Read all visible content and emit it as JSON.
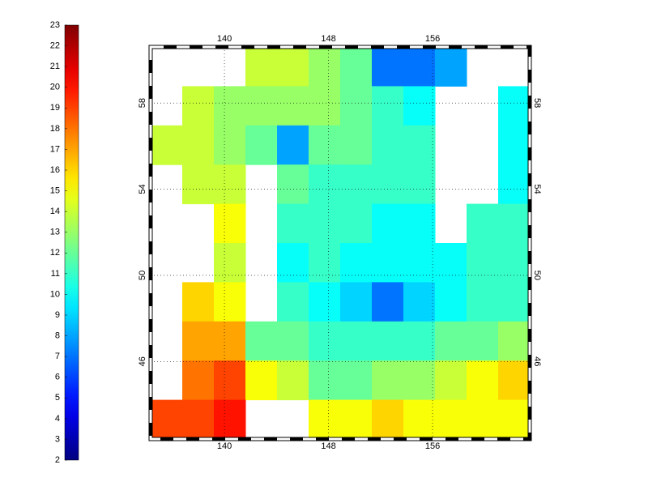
{
  "colorbar": {
    "clim": [
      2,
      23
    ],
    "ticks": [
      2,
      3,
      4,
      5,
      6,
      7,
      8,
      9,
      10,
      11,
      12,
      13,
      14,
      15,
      16,
      17,
      18,
      19,
      20,
      21,
      22,
      23
    ]
  },
  "map": {
    "lonlim": [
      134.33,
      163.47
    ],
    "latlim": [
      42.4,
      60.6
    ],
    "lon_ticks": [
      140,
      148,
      156
    ],
    "lat_ticks": [
      46,
      50,
      54,
      58
    ],
    "grid": true,
    "field": [
      [
        null,
        null,
        null,
        14,
        14,
        13,
        12,
        7,
        7,
        8,
        null,
        null
      ],
      [
        null,
        14,
        13,
        13,
        13,
        13,
        12,
        11,
        10,
        null,
        null,
        10
      ],
      [
        14,
        14,
        13,
        12,
        8,
        12,
        12,
        11,
        11,
        null,
        null,
        10
      ],
      [
        null,
        14,
        14,
        null,
        12,
        11,
        11,
        11,
        11,
        null,
        null,
        10
      ],
      [
        null,
        null,
        15,
        null,
        11,
        11,
        11,
        10,
        10,
        null,
        11,
        11
      ],
      [
        null,
        null,
        14,
        null,
        10,
        11,
        10,
        10,
        10,
        10,
        11,
        11
      ],
      [
        null,
        16,
        15,
        null,
        11,
        10,
        9,
        7,
        9,
        10,
        11,
        11
      ],
      [
        null,
        17,
        17,
        12,
        12,
        11,
        11,
        11,
        11,
        12,
        12,
        13
      ],
      [
        null,
        18,
        19,
        15,
        14,
        12,
        12,
        13,
        13,
        14,
        15,
        16
      ],
      [
        19,
        19,
        20,
        null,
        null,
        15,
        15,
        16,
        15,
        15,
        15,
        15
      ]
    ]
  }
}
